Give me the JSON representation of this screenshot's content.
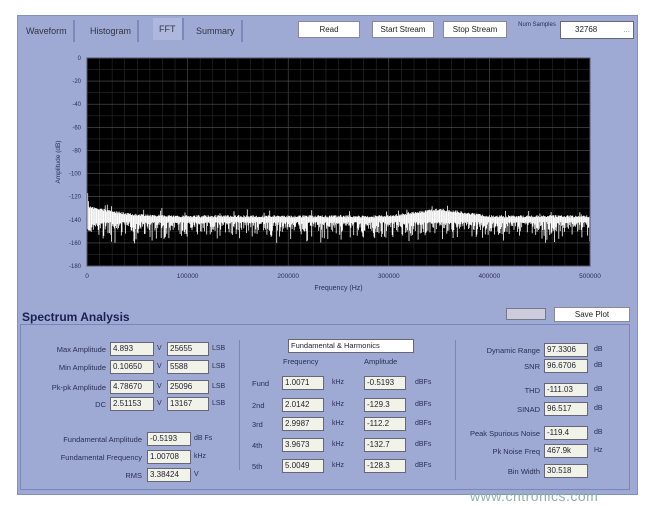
{
  "tabs": [
    "Waveform",
    "Histogram",
    "FFT",
    "Summary"
  ],
  "active_tab": "FFT",
  "toolbar": {
    "read": "Read",
    "start_stream": "Start Stream",
    "stop_stream": "Stop Stream",
    "num_samples_label": "Num Samples",
    "num_samples": "32768",
    "browse": "..."
  },
  "chart_data": {
    "type": "line",
    "xlabel": "Frequency (Hz)",
    "ylabel": "Amplitude (dB)",
    "xlim": [
      0,
      500000
    ],
    "ylim": [
      -180,
      0
    ],
    "xticks": [
      "0",
      "100000",
      "200000",
      "300000",
      "400000",
      "500000"
    ],
    "yticks": [
      "0",
      "-20",
      "-40",
      "-60",
      "-80",
      "-100",
      "-120",
      "-140",
      "-160",
      "-180"
    ],
    "grid": true,
    "background": "#000000",
    "trace_color": "#ffffff",
    "series": [
      {
        "x": [
          0,
          2000,
          25000,
          50000,
          100000,
          150000,
          200000,
          250000,
          300000,
          350000,
          400000,
          450000,
          500000
        ],
        "upper": [
          -110,
          -128,
          -132,
          -135,
          -136,
          -136,
          -136,
          -136,
          -136,
          -130,
          -136,
          -136,
          -136
        ],
        "lower": [
          -150,
          -158,
          -160,
          -162,
          -160,
          -160,
          -162,
          -160,
          -160,
          -160,
          -160,
          -162,
          -160
        ]
      }
    ]
  },
  "spectrum": {
    "title": "Spectrum Analysis",
    "save_plot": "Save Plot",
    "left": [
      {
        "label": "Max Amplitude",
        "volts": "4.893",
        "lsb": "25655"
      },
      {
        "label": "Min Amplitude",
        "volts": "0.10650",
        "lsb": "5588"
      },
      {
        "label": "Pk-pk Amplitude",
        "volts": "4.78670",
        "lsb": "25096"
      },
      {
        "label": "DC",
        "volts": "2.51153",
        "lsb": "13167"
      }
    ],
    "v_unit": "V",
    "lsb_unit": "LSB",
    "fund_amp": {
      "label": "Fundamental Amplitude",
      "value": "-0.5193",
      "unit": "dB Fs"
    },
    "fund_freq": {
      "label": "Fundamental Frequency",
      "value": "1.00708",
      "unit": "kHz"
    },
    "rms": {
      "label": "RMS",
      "value": "3.38424",
      "unit": "V"
    },
    "harmonics": {
      "title": "Fundamental & Harmonics",
      "freq_header": "Frequency",
      "amp_header": "Amplitude",
      "freq_unit": "kHz",
      "amp_unit": "dBFs",
      "rows": [
        {
          "label": "Fund",
          "freq": "1.0071",
          "amp": "-0.5193"
        },
        {
          "label": "2nd",
          "freq": "2.0142",
          "amp": "-129.3"
        },
        {
          "label": "3rd",
          "freq": "2.9987",
          "amp": "-112.2"
        },
        {
          "label": "4th",
          "freq": "3.9673",
          "amp": "-132.7"
        },
        {
          "label": "5th",
          "freq": "5.0049",
          "amp": "-128.3"
        }
      ]
    },
    "right": [
      {
        "label": "Dynamic Range",
        "value": "97.3306",
        "unit": "dB"
      },
      {
        "label": "SNR",
        "value": "96.6706",
        "unit": "dB"
      },
      {
        "label": "THD",
        "value": "-111.03",
        "unit": "dB"
      },
      {
        "label": "SINAD",
        "value": "96.517",
        "unit": "dB"
      },
      {
        "label": "Peak Spurious Noise",
        "value": "-119.4",
        "unit": "dB"
      },
      {
        "label": "Pk Noise Freq",
        "value": "467.9k",
        "unit": "Hz"
      },
      {
        "label": "Bin Width",
        "value": "30.518",
        "unit": ""
      }
    ]
  },
  "watermark": "www.cntronics.com"
}
